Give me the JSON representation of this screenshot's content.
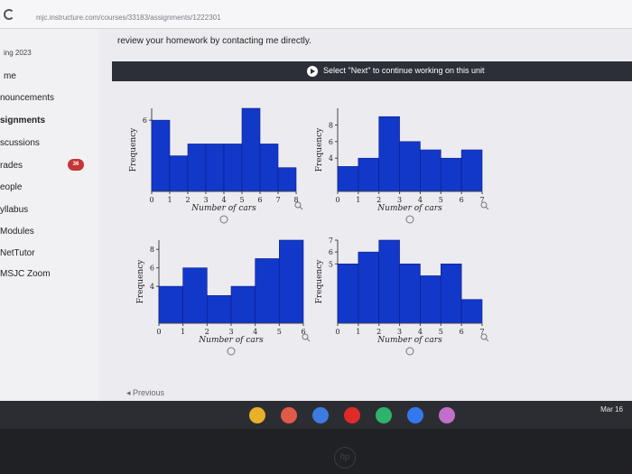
{
  "browser": {
    "url": "mjc.instructure.com/courses/33183/assignments/1222301"
  },
  "sidebar": {
    "term": "ing 2023",
    "items": [
      {
        "label": "me"
      },
      {
        "label": "nouncements"
      },
      {
        "label": "signments"
      },
      {
        "label": "scussions"
      },
      {
        "label": "rades"
      },
      {
        "label": "eople"
      },
      {
        "label": "yllabus"
      },
      {
        "label": "Modules"
      },
      {
        "label": "NetTutor"
      },
      {
        "label": "MSJC Zoom"
      }
    ],
    "grades_badge": "36"
  },
  "content": {
    "notice": "review your homework by contacting me directly.",
    "banner": "Select \"Next\" to continue working on this unit",
    "previous_label": "◂ Previous"
  },
  "chart_data": [
    {
      "type": "bar",
      "x": [
        0,
        1,
        2,
        3,
        4,
        5,
        6,
        7
      ],
      "values": [
        6,
        3,
        4,
        4,
        4,
        7,
        4,
        2
      ],
      "xticks": [
        "0",
        "1",
        "2",
        "3",
        "4",
        "5",
        "6",
        "7",
        "8"
      ],
      "yticks": [
        "6"
      ],
      "xlabel": "Number of cars",
      "ylabel": "Frequency",
      "ylim": [
        0,
        7
      ],
      "color": "#1238c9"
    },
    {
      "type": "bar",
      "x": [
        0,
        1,
        2,
        3,
        4,
        5,
        6
      ],
      "values": [
        3,
        4,
        9,
        6,
        5,
        4,
        5
      ],
      "xticks": [
        "0",
        "1",
        "2",
        "3",
        "4",
        "5",
        "6",
        "7"
      ],
      "yticks": [
        "4",
        "6",
        "8"
      ],
      "xlabel": "Number of cars",
      "ylabel": "Frequency",
      "ylim": [
        0,
        10
      ],
      "color": "#1238c9"
    },
    {
      "type": "bar",
      "x": [
        0,
        1,
        2,
        3,
        4,
        5
      ],
      "values": [
        4,
        6,
        3,
        4,
        7,
        9
      ],
      "xticks": [
        "0",
        "1",
        "2",
        "3",
        "4",
        "5",
        "6"
      ],
      "yticks": [
        "4",
        "6",
        "8"
      ],
      "xlabel": "Number of cars",
      "ylabel": "Frequency",
      "ylim": [
        0,
        9
      ],
      "color": "#1238c9"
    },
    {
      "type": "bar",
      "x": [
        0,
        1,
        2,
        3,
        4,
        5,
        6
      ],
      "values": [
        5,
        6,
        7,
        5,
        4,
        5,
        2
      ],
      "xticks": [
        "0",
        "1",
        "2",
        "3",
        "4",
        "5",
        "6",
        "7"
      ],
      "yticks": [
        "5",
        "6",
        "7"
      ],
      "xlabel": "Number of cars",
      "ylabel": "Frequency",
      "ylim": [
        0,
        7
      ],
      "color": "#1238c9"
    }
  ],
  "dock": {
    "date": "Mar 16",
    "apps": [
      {
        "name": "chrome-icon",
        "color": "#e8b02a"
      },
      {
        "name": "gmail-icon",
        "color": "#e05a4a"
      },
      {
        "name": "docs-icon",
        "color": "#3c7be0"
      },
      {
        "name": "youtube-icon",
        "color": "#e02a2a"
      },
      {
        "name": "play-store-icon",
        "color": "#2fb36b"
      },
      {
        "name": "settings-icon",
        "color": "#3478f0"
      },
      {
        "name": "photos-icon",
        "color": "#c070c8"
      }
    ]
  }
}
